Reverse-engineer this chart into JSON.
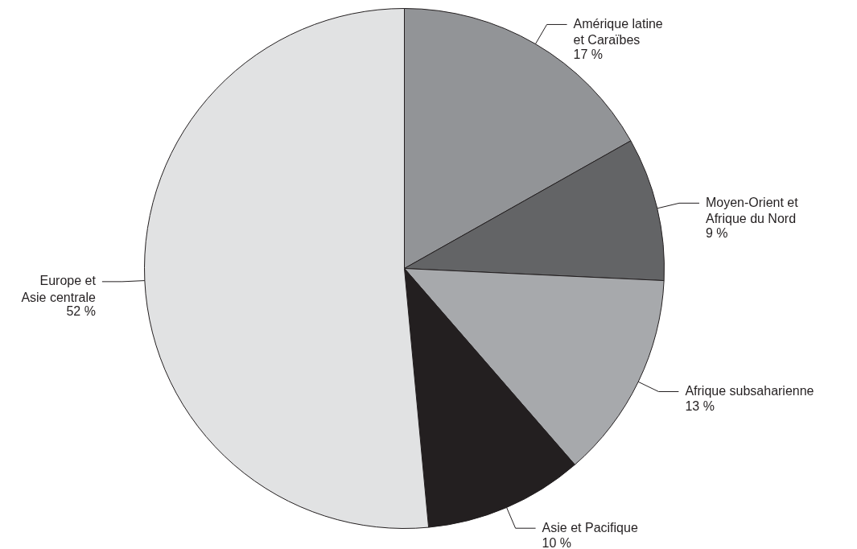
{
  "chart_data": {
    "type": "pie",
    "categories": [
      "Amérique latine\net Caraïbes",
      "Moyen-Orient et\nAfrique du Nord",
      "Afrique subsaharienne",
      "Asie et Pacifique",
      "Europe et\nAsie centrale"
    ],
    "values": [
      17,
      9,
      13,
      10,
      52
    ],
    "colors": [
      "#929497",
      "#636466",
      "#a7a9ac",
      "#231f20",
      "#e1e2e3"
    ],
    "value_labels": [
      "17 %",
      "9 %",
      "13 %",
      "10 %",
      "52 %"
    ]
  }
}
